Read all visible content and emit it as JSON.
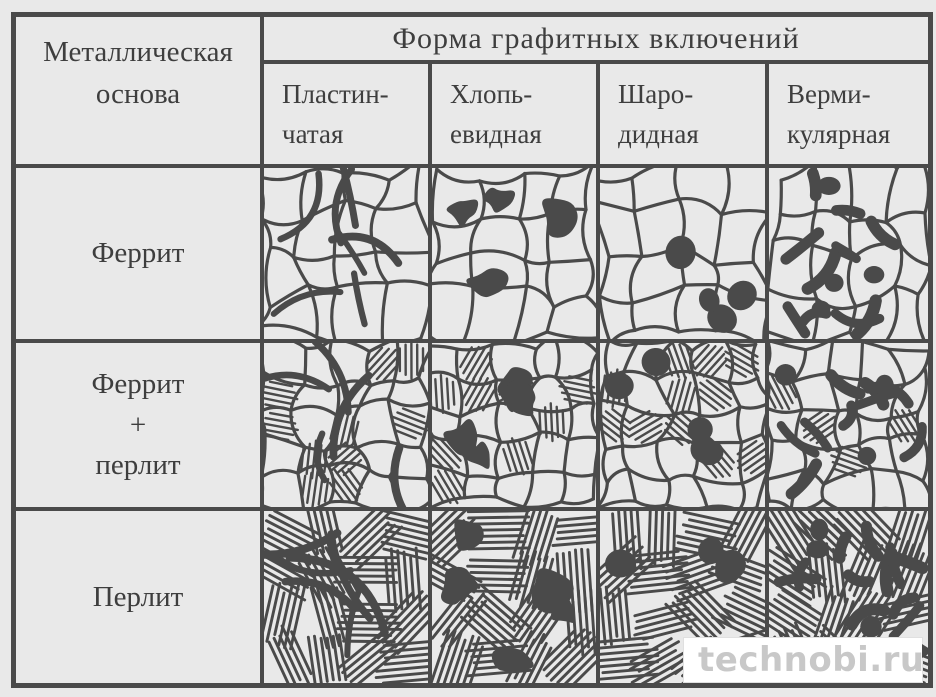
{
  "page": {
    "background": "#e9e9e9",
    "ink": "#4a4a4a",
    "text_color": "#3e3e3e"
  },
  "table": {
    "corner_header": "Металлическая\nоснова",
    "top_header": "Форма графитных включений",
    "columns": [
      {
        "label": "Пластин-\nчатая"
      },
      {
        "label": "Хлопь-\nевидная"
      },
      {
        "label": "Шаро-\nдидная"
      },
      {
        "label": "Верми-\nкулярная"
      }
    ],
    "rows": [
      {
        "label": "Феррит"
      },
      {
        "label": "Феррит\n+\nперлит"
      },
      {
        "label": "Перлит"
      }
    ],
    "cells": [
      [
        {
          "matrix": "grains",
          "graphite": "lamellar",
          "grain": 4,
          "count": 7,
          "scale": 1.0,
          "seed": 101
        },
        {
          "matrix": "grains",
          "graphite": "flake",
          "grain": 4,
          "count": 4,
          "scale": 1.1,
          "seed": 102
        },
        {
          "matrix": "grains",
          "graphite": "nodular",
          "grain": 4,
          "count": 4,
          "scale": 1.1,
          "seed": 103
        },
        {
          "matrix": "grains",
          "graphite": "vermicular",
          "grain": 4,
          "count": 10,
          "scale": 1.0,
          "seed": 104
        }
      ],
      [
        {
          "matrix": "mixed",
          "graphite": "lamellar",
          "grain": 5,
          "count": 5,
          "scale": 1.2,
          "seed": 105
        },
        {
          "matrix": "mixed",
          "graphite": "flake",
          "grain": 5,
          "count": 4,
          "scale": 1.1,
          "seed": 106
        },
        {
          "matrix": "mixed",
          "graphite": "nodular",
          "grain": 5,
          "count": 5,
          "scale": 1.1,
          "seed": 107
        },
        {
          "matrix": "mixed",
          "graphite": "vermicular",
          "grain": 5,
          "count": 9,
          "scale": 1.0,
          "seed": 108
        }
      ],
      [
        {
          "matrix": "pearlite",
          "graphite": "lamellar",
          "count": 6,
          "scale": 1.6,
          "seed": 109
        },
        {
          "matrix": "pearlite",
          "graphite": "flake",
          "count": 5,
          "scale": 1.1,
          "seed": 110
        },
        {
          "matrix": "pearlite",
          "graphite": "nodular",
          "count": 5,
          "scale": 1.1,
          "seed": 111
        },
        {
          "matrix": "pearlite",
          "graphite": "vermicular",
          "count": 12,
          "scale": 1.0,
          "seed": 112
        }
      ]
    ]
  },
  "watermark": {
    "text": "technobi.ru",
    "text_color": "#c8c8c8",
    "box_color": "#ffffff"
  }
}
